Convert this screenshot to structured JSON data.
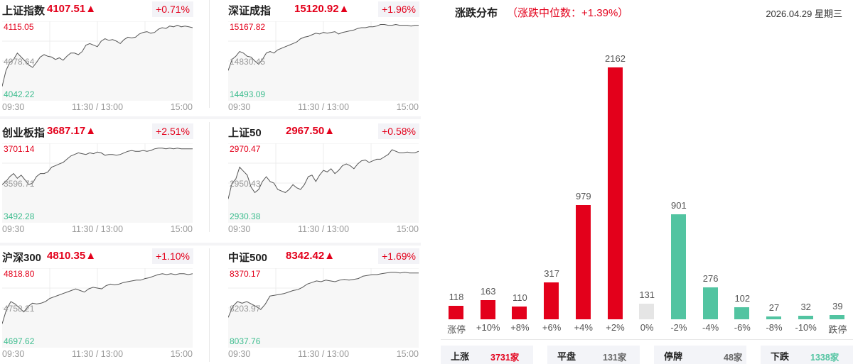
{
  "indices": [
    {
      "name": "上证指数",
      "price": "4107.51",
      "arrow": "▲",
      "pct": "+0.71%",
      "high": "4115.05",
      "mid": "4078.64",
      "low": "4042.22",
      "times": [
        "09:30",
        "11:30 / 13:00",
        "15:00"
      ],
      "series": [
        0.18,
        0.38,
        0.48,
        0.52,
        0.6,
        0.55,
        0.5,
        0.45,
        0.42,
        0.48,
        0.55,
        0.58,
        0.56,
        0.55,
        0.52,
        0.54,
        0.51,
        0.56,
        0.6,
        0.6,
        0.58,
        0.62,
        0.7,
        0.72,
        0.7,
        0.68,
        0.75,
        0.78,
        0.76,
        0.77,
        0.75,
        0.72,
        0.77,
        0.8,
        0.79,
        0.8,
        0.84,
        0.86,
        0.87,
        0.85,
        0.86,
        0.9,
        0.92,
        0.91,
        0.94,
        0.93,
        0.95,
        0.93,
        0.94,
        0.93,
        0.92
      ]
    },
    {
      "name": "深证成指",
      "price": "15120.92",
      "arrow": "▲",
      "pct": "+1.96%",
      "high": "15167.82",
      "mid": "14830.45",
      "low": "14493.09",
      "times": [
        "09:30",
        "11:30 / 13:00",
        "15:00"
      ],
      "series": [
        0.38,
        0.52,
        0.56,
        0.62,
        0.6,
        0.56,
        0.55,
        0.5,
        0.46,
        0.52,
        0.6,
        0.62,
        0.6,
        0.64,
        0.66,
        0.68,
        0.7,
        0.72,
        0.74,
        0.78,
        0.8,
        0.81,
        0.83,
        0.85,
        0.84,
        0.86,
        0.85,
        0.86,
        0.87,
        0.84,
        0.86,
        0.87,
        0.88,
        0.89,
        0.91,
        0.92,
        0.92,
        0.93,
        0.93,
        0.94,
        0.96,
        0.96,
        0.95,
        0.95,
        0.96,
        0.95,
        0.95,
        0.95,
        0.94,
        0.95,
        0.95
      ]
    },
    {
      "name": "创业板指",
      "price": "3687.17",
      "arrow": "▲",
      "pct": "+2.51%",
      "high": "3701.14",
      "mid": "3596.71",
      "low": "3492.28",
      "times": [
        "09:30",
        "11:30 / 13:00",
        "15:00"
      ],
      "series": [
        0.48,
        0.52,
        0.58,
        0.62,
        0.56,
        0.6,
        0.54,
        0.48,
        0.5,
        0.58,
        0.62,
        0.62,
        0.64,
        0.7,
        0.72,
        0.74,
        0.76,
        0.8,
        0.84,
        0.86,
        0.88,
        0.87,
        0.86,
        0.88,
        0.87,
        0.89,
        0.88,
        0.85,
        0.86,
        0.86,
        0.85,
        0.86,
        0.88,
        0.9,
        0.91,
        0.9,
        0.9,
        0.91,
        0.9,
        0.91,
        0.93,
        0.94,
        0.94,
        0.93,
        0.94,
        0.93,
        0.94,
        0.93,
        0.93,
        0.93,
        0.93
      ]
    },
    {
      "name": "上证50",
      "price": "2967.50",
      "arrow": "▲",
      "pct": "+0.58%",
      "high": "2970.47",
      "mid": "2950.43",
      "low": "2930.38",
      "times": [
        "09:30",
        "11:30 / 13:00",
        "15:00"
      ],
      "series": [
        0.3,
        0.5,
        0.55,
        0.7,
        0.65,
        0.6,
        0.45,
        0.38,
        0.42,
        0.52,
        0.58,
        0.52,
        0.5,
        0.42,
        0.4,
        0.38,
        0.42,
        0.48,
        0.44,
        0.42,
        0.48,
        0.58,
        0.6,
        0.52,
        0.6,
        0.66,
        0.64,
        0.68,
        0.62,
        0.66,
        0.72,
        0.74,
        0.72,
        0.68,
        0.74,
        0.78,
        0.79,
        0.76,
        0.78,
        0.8,
        0.8,
        0.83,
        0.86,
        0.92,
        0.9,
        0.88,
        0.88,
        0.89,
        0.88,
        0.88,
        0.9
      ]
    },
    {
      "name": "沪深300",
      "price": "4810.35",
      "arrow": "▲",
      "pct": "+1.10%",
      "high": "4818.80",
      "mid": "4758.21",
      "low": "4697.62",
      "times": [
        "09:30",
        "11:30 / 13:00",
        "15:00"
      ],
      "series": [
        0.3,
        0.48,
        0.58,
        0.55,
        0.5,
        0.45,
        0.52,
        0.56,
        0.55,
        0.56,
        0.58,
        0.62,
        0.64,
        0.66,
        0.68,
        0.7,
        0.72,
        0.74,
        0.72,
        0.7,
        0.74,
        0.76,
        0.75,
        0.74,
        0.78,
        0.8,
        0.79,
        0.8,
        0.82,
        0.83,
        0.84,
        0.85,
        0.85,
        0.87,
        0.88,
        0.9,
        0.92,
        0.93,
        0.92,
        0.93,
        0.92,
        0.93,
        0.93,
        0.92,
        0.93
      ]
    },
    {
      "name": "中证500",
      "price": "8342.42",
      "arrow": "▲",
      "pct": "+1.69%",
      "high": "8370.17",
      "mid": "8203.97",
      "low": "8037.76",
      "times": [
        "09:30",
        "11:30 / 13:00",
        "15:00"
      ],
      "series": [
        0.38,
        0.52,
        0.58,
        0.56,
        0.58,
        0.55,
        0.52,
        0.48,
        0.55,
        0.65,
        0.66,
        0.67,
        0.68,
        0.7,
        0.72,
        0.73,
        0.76,
        0.8,
        0.82,
        0.84,
        0.83,
        0.85,
        0.84,
        0.83,
        0.85,
        0.86,
        0.85,
        0.86,
        0.87,
        0.9,
        0.91,
        0.92,
        0.92,
        0.93,
        0.94,
        0.95,
        0.95,
        0.94,
        0.95,
        0.94,
        0.94,
        0.94
      ]
    }
  ],
  "distribution": {
    "title": "涨跌分布",
    "subtitle": "（涨跌中位数：+1.39%）",
    "date": "2026.04.29 星期三"
  },
  "chart_data": {
    "type": "bar",
    "title": "涨跌分布（涨跌中位数：+1.39%）",
    "categories": [
      "涨停",
      "+10%",
      "+8%",
      "+6%",
      "+4%",
      "+2%",
      "0%",
      "-2%",
      "-4%",
      "-6%",
      "-8%",
      "-10%",
      "跌停"
    ],
    "values": [
      118,
      163,
      110,
      317,
      979,
      2162,
      131,
      901,
      276,
      102,
      27,
      32,
      39
    ],
    "colors": [
      "#e3001b",
      "#e3001b",
      "#e3001b",
      "#e3001b",
      "#e3001b",
      "#e3001b",
      "#e5e5e5",
      "#52c4a1",
      "#52c4a1",
      "#52c4a1",
      "#52c4a1",
      "#52c4a1",
      "#52c4a1"
    ],
    "xlabel": "",
    "ylabel": "",
    "grid": false
  },
  "summary": [
    {
      "label": "上涨",
      "value": "3731家",
      "color": "#e3001b"
    },
    {
      "label": "平盘",
      "value": "131家",
      "color": "#666666"
    },
    {
      "label": "停牌",
      "value": "48家",
      "color": "#666666"
    },
    {
      "label": "下跌",
      "value": "1338家",
      "color": "#52c4a1"
    }
  ],
  "colors": {
    "up": "#e3001b",
    "down": "#52c4a1",
    "flat": "#e5e5e5"
  }
}
